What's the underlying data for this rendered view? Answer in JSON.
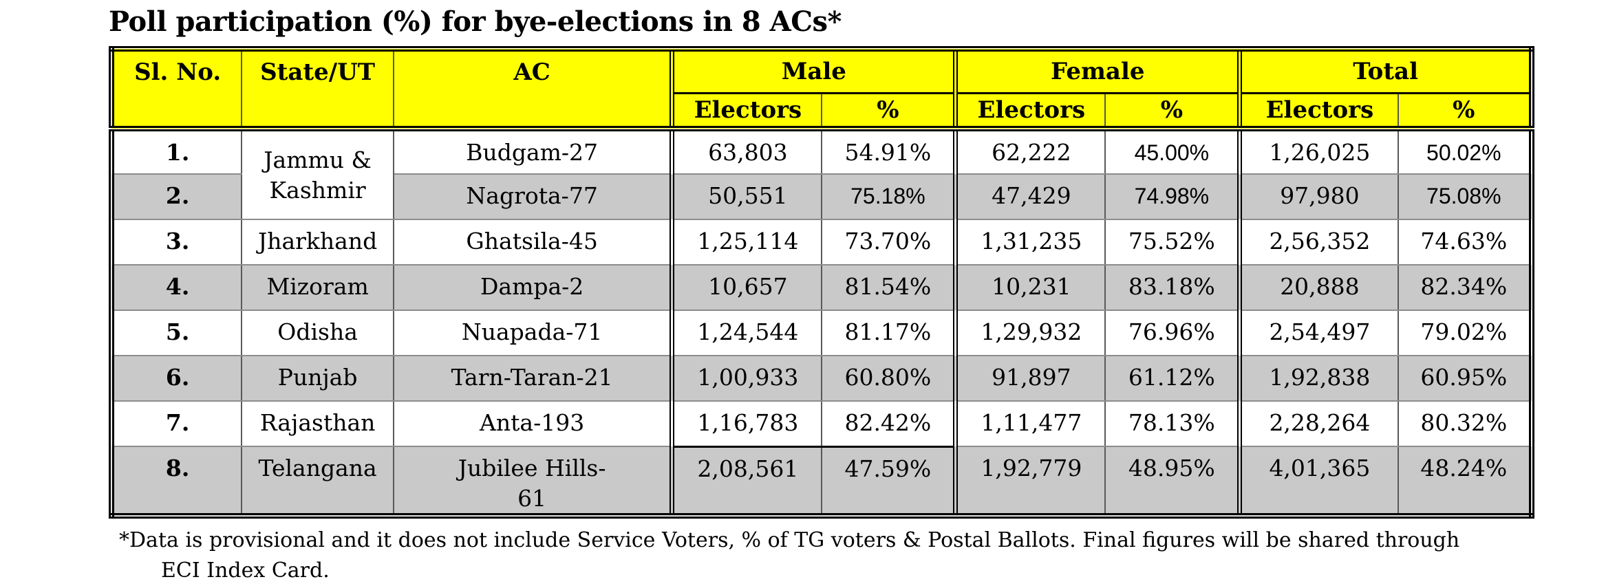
{
  "title": "Poll participation (%) for bye-elections in 8 ACs*",
  "table": {
    "headers": {
      "sl_no": "Sl. No.",
      "state_ut": "State/UT",
      "ac": "AC",
      "male": "Male",
      "female": "Female",
      "total": "Total",
      "male_electors": "Electors",
      "male_pct": "%",
      "female_electors": "Electors",
      "female_pct": "%",
      "total_electors": "Electors",
      "total_pct": "%"
    },
    "rows": [
      {
        "sl": "1.",
        "state": "Jammu & Kashmir",
        "state_rowspan": 2,
        "ac": "Budgam-27",
        "m_electors": "63,803",
        "m_pct": "54.91%",
        "f_electors": "62,222",
        "f_pct": "45.00%",
        "t_electors": "1,26,025",
        "t_pct": "50.02%"
      },
      {
        "sl": "2.",
        "ac": "Nagrota-77",
        "m_electors": "50,551",
        "m_pct": "75.18%",
        "f_electors": "47,429",
        "f_pct": "74.98%",
        "t_electors": "97,980",
        "t_pct": "75.08%"
      },
      {
        "sl": "3.",
        "state": "Jharkhand",
        "ac": "Ghatsila-45",
        "m_electors": "1,25,114",
        "m_pct": "73.70%",
        "f_electors": "1,31,235",
        "f_pct": "75.52%",
        "t_electors": "2,56,352",
        "t_pct": "74.63%"
      },
      {
        "sl": "4.",
        "state": "Mizoram",
        "ac": "Dampa-2",
        "m_electors": "10,657",
        "m_pct": "81.54%",
        "f_electors": "10,231",
        "f_pct": "83.18%",
        "t_electors": "20,888",
        "t_pct": "82.34%"
      },
      {
        "sl": "5.",
        "state": "Odisha",
        "ac": "Nuapada-71",
        "m_electors": "1,24,544",
        "m_pct": "81.17%",
        "f_electors": "1,29,932",
        "f_pct": "76.96%",
        "t_electors": "2,54,497",
        "t_pct": "79.02%"
      },
      {
        "sl": "6.",
        "state": "Punjab",
        "ac": "Tarn-Taran-21",
        "m_electors": "1,00,933",
        "m_pct": "60.80%",
        "f_electors": "91,897",
        "f_pct": "61.12%",
        "t_electors": "1,92,838",
        "t_pct": "60.95%"
      },
      {
        "sl": "7.",
        "state": "Rajasthan",
        "ac": "Anta-193",
        "m_electors": "1,16,783",
        "m_pct": "82.42%",
        "f_electors": "1,11,477",
        "f_pct": "78.13%",
        "t_electors": "2,28,264",
        "t_pct": "80.32%"
      },
      {
        "sl": "8.",
        "state": "Telangana",
        "ac": "Jubilee Hills-61",
        "m_electors": "2,08,561",
        "m_pct": "47.59%",
        "f_electors": "1,92,779",
        "f_pct": "48.95%",
        "t_electors": "4,01,365",
        "t_pct": "48.24%"
      }
    ]
  },
  "footnote": {
    "line1": "*Data is provisional and it does not include Service Voters, % of TG voters & Postal Ballots. Final figures will be shared through",
    "line2": "ECI Index Card."
  },
  "colors": {
    "header_bg": "#FFFF00",
    "stripe_bg": "#C9C9C9",
    "border_black": "#000000",
    "grid_gray": "#808080"
  }
}
